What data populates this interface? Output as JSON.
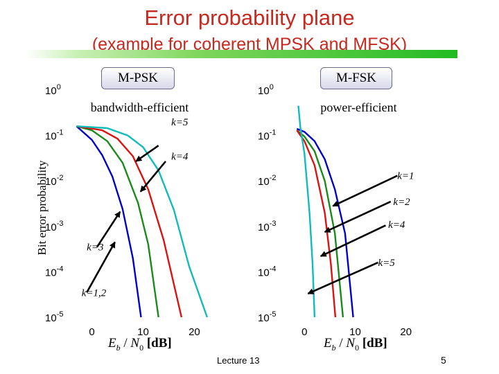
{
  "title": "Error probability plane",
  "subtitle": "(example for coherent MPSK and MFSK)",
  "footer": "Lecture 13",
  "page_number": "5",
  "colors": {
    "title": "#c8281e",
    "bar": "#22bb22"
  },
  "chart_data": [
    {
      "type": "line",
      "box_label": "M-PSK",
      "subtitle": "bandwidth-efficient",
      "xlabel": "Eb / N0 [dB]",
      "ylabel": "Bit error probability",
      "xlim": [
        -4,
        24
      ],
      "ylim": [
        1e-05,
        1
      ],
      "yscale": "log",
      "x_ticks": [
        "0",
        "10",
        "20"
      ],
      "y_ticks": [
        "10^0",
        "10^-1",
        "10^-2",
        "10^-3",
        "10^-4",
        "10^-5"
      ],
      "series": [
        {
          "color": "#0000cc",
          "points": [
            [
              -3,
              0.16
            ],
            [
              0,
              0.08
            ],
            [
              2,
              0.037
            ],
            [
              4,
              0.0125
            ],
            [
              6,
              0.0024
            ],
            [
              8,
              0.0002
            ],
            [
              9.6,
              1e-05
            ]
          ]
        },
        {
          "color": "#1a8a1a",
          "points": [
            [
              -3,
              0.16
            ],
            [
              0,
              0.13
            ],
            [
              3,
              0.075
            ],
            [
              6,
              0.025
            ],
            [
              9,
              0.0033
            ],
            [
              11,
              0.0004
            ],
            [
              13,
              1e-05
            ]
          ]
        },
        {
          "color": "#dd1111",
          "points": [
            [
              -3,
              0.16
            ],
            [
              2,
              0.13
            ],
            [
              5,
              0.085
            ],
            [
              8,
              0.035
            ],
            [
              11,
              0.0065
            ],
            [
              14,
              0.0005
            ],
            [
              17.5,
              1e-05
            ]
          ]
        },
        {
          "color": "#11bbbb",
          "points": [
            [
              -3,
              0.16
            ],
            [
              3,
              0.145
            ],
            [
              7,
              0.1
            ],
            [
              10,
              0.055
            ],
            [
              13,
              0.017
            ],
            [
              16,
              0.0023
            ],
            [
              19,
              0.00013
            ],
            [
              22.5,
              1e-05
            ]
          ]
        }
      ],
      "annotations": [
        {
          "text": "k=5",
          "at": [
            15.5,
            0.2
          ]
        },
        {
          "text": "k=4",
          "at": [
            15.5,
            0.035
          ]
        },
        {
          "text": "k=3",
          "at": [
            -1,
            0.00035
          ]
        },
        {
          "text": "k=1,2",
          "at": [
            -2,
            3.5e-05
          ]
        }
      ],
      "arrows": [
        {
          "from": [
            13,
            0.06
          ],
          "to": [
            8.6,
            0.027
          ]
        },
        {
          "from": [
            14.4,
            0.027
          ],
          "to": [
            9.5,
            0.0058
          ]
        },
        {
          "from": [
            1,
            0.00035
          ],
          "to": [
            5.5,
            0.0021
          ]
        },
        {
          "from": [
            -1,
            3.5e-05
          ],
          "to": [
            4.5,
            0.00045
          ]
        }
      ]
    },
    {
      "type": "line",
      "box_label": "M-FSK",
      "subtitle": "power-efficient",
      "xlabel": "Eb / N0 [dB]",
      "xlim": [
        -4,
        24
      ],
      "ylim": [
        1e-05,
        1
      ],
      "yscale": "log",
      "x_ticks": [
        "0",
        "10",
        "20"
      ],
      "y_ticks": [
        "10^0",
        "10^-1",
        "10^-2",
        "10^-3",
        "10^-4",
        "10^-5"
      ],
      "series": [
        {
          "color": "#0000cc",
          "points": [
            [
              -1.5,
              0.14
            ],
            [
              0,
              0.12
            ],
            [
              2,
              0.075
            ],
            [
              4,
              0.03
            ],
            [
              6,
              0.0065
            ],
            [
              8,
              0.0007
            ],
            [
              9.6,
              1e-05
            ]
          ]
        },
        {
          "color": "#1a8a1a",
          "points": [
            [
              -1.5,
              0.13
            ],
            [
              0,
              0.095
            ],
            [
              2,
              0.045
            ],
            [
              4,
              0.01
            ],
            [
              6,
              0.0007
            ],
            [
              7.6,
              1e-05
            ]
          ]
        },
        {
          "color": "#dd1111",
          "points": [
            [
              -1.5,
              0.13
            ],
            [
              0,
              0.075
            ],
            [
              2,
              0.022
            ],
            [
              4,
              0.002
            ],
            [
              5.2,
              0.00015
            ],
            [
              6.1,
              1e-05
            ]
          ]
        },
        {
          "color": "#11bbbb",
          "points": [
            [
              -1.2,
              0.45
            ],
            [
              -0.8,
              0.15
            ],
            [
              0,
              0.04
            ],
            [
              1,
              0.002
            ],
            [
              1.6,
              0.00015
            ],
            [
              2,
              1e-05
            ]
          ]
        }
      ],
      "annotations": [
        {
          "text": "k=1",
          "at": [
            18.3,
            0.013
          ]
        },
        {
          "text": "k=2",
          "at": [
            17.5,
            0.0035
          ]
        },
        {
          "text": "k=4",
          "at": [
            16.5,
            0.0011
          ]
        },
        {
          "text": "k=5",
          "at": [
            14.5,
            0.00016
          ]
        }
      ],
      "arrows": [
        {
          "from": [
            18.3,
            0.013
          ],
          "to": [
            5.6,
            0.0028
          ]
        },
        {
          "from": [
            17,
            0.0035
          ],
          "to": [
            4,
            0.00075
          ]
        },
        {
          "from": [
            16,
            0.00105
          ],
          "to": [
            3.2,
            0.00022
          ]
        },
        {
          "from": [
            14.5,
            0.00016
          ],
          "to": [
            0.7,
            3.3e-05
          ]
        }
      ]
    }
  ]
}
